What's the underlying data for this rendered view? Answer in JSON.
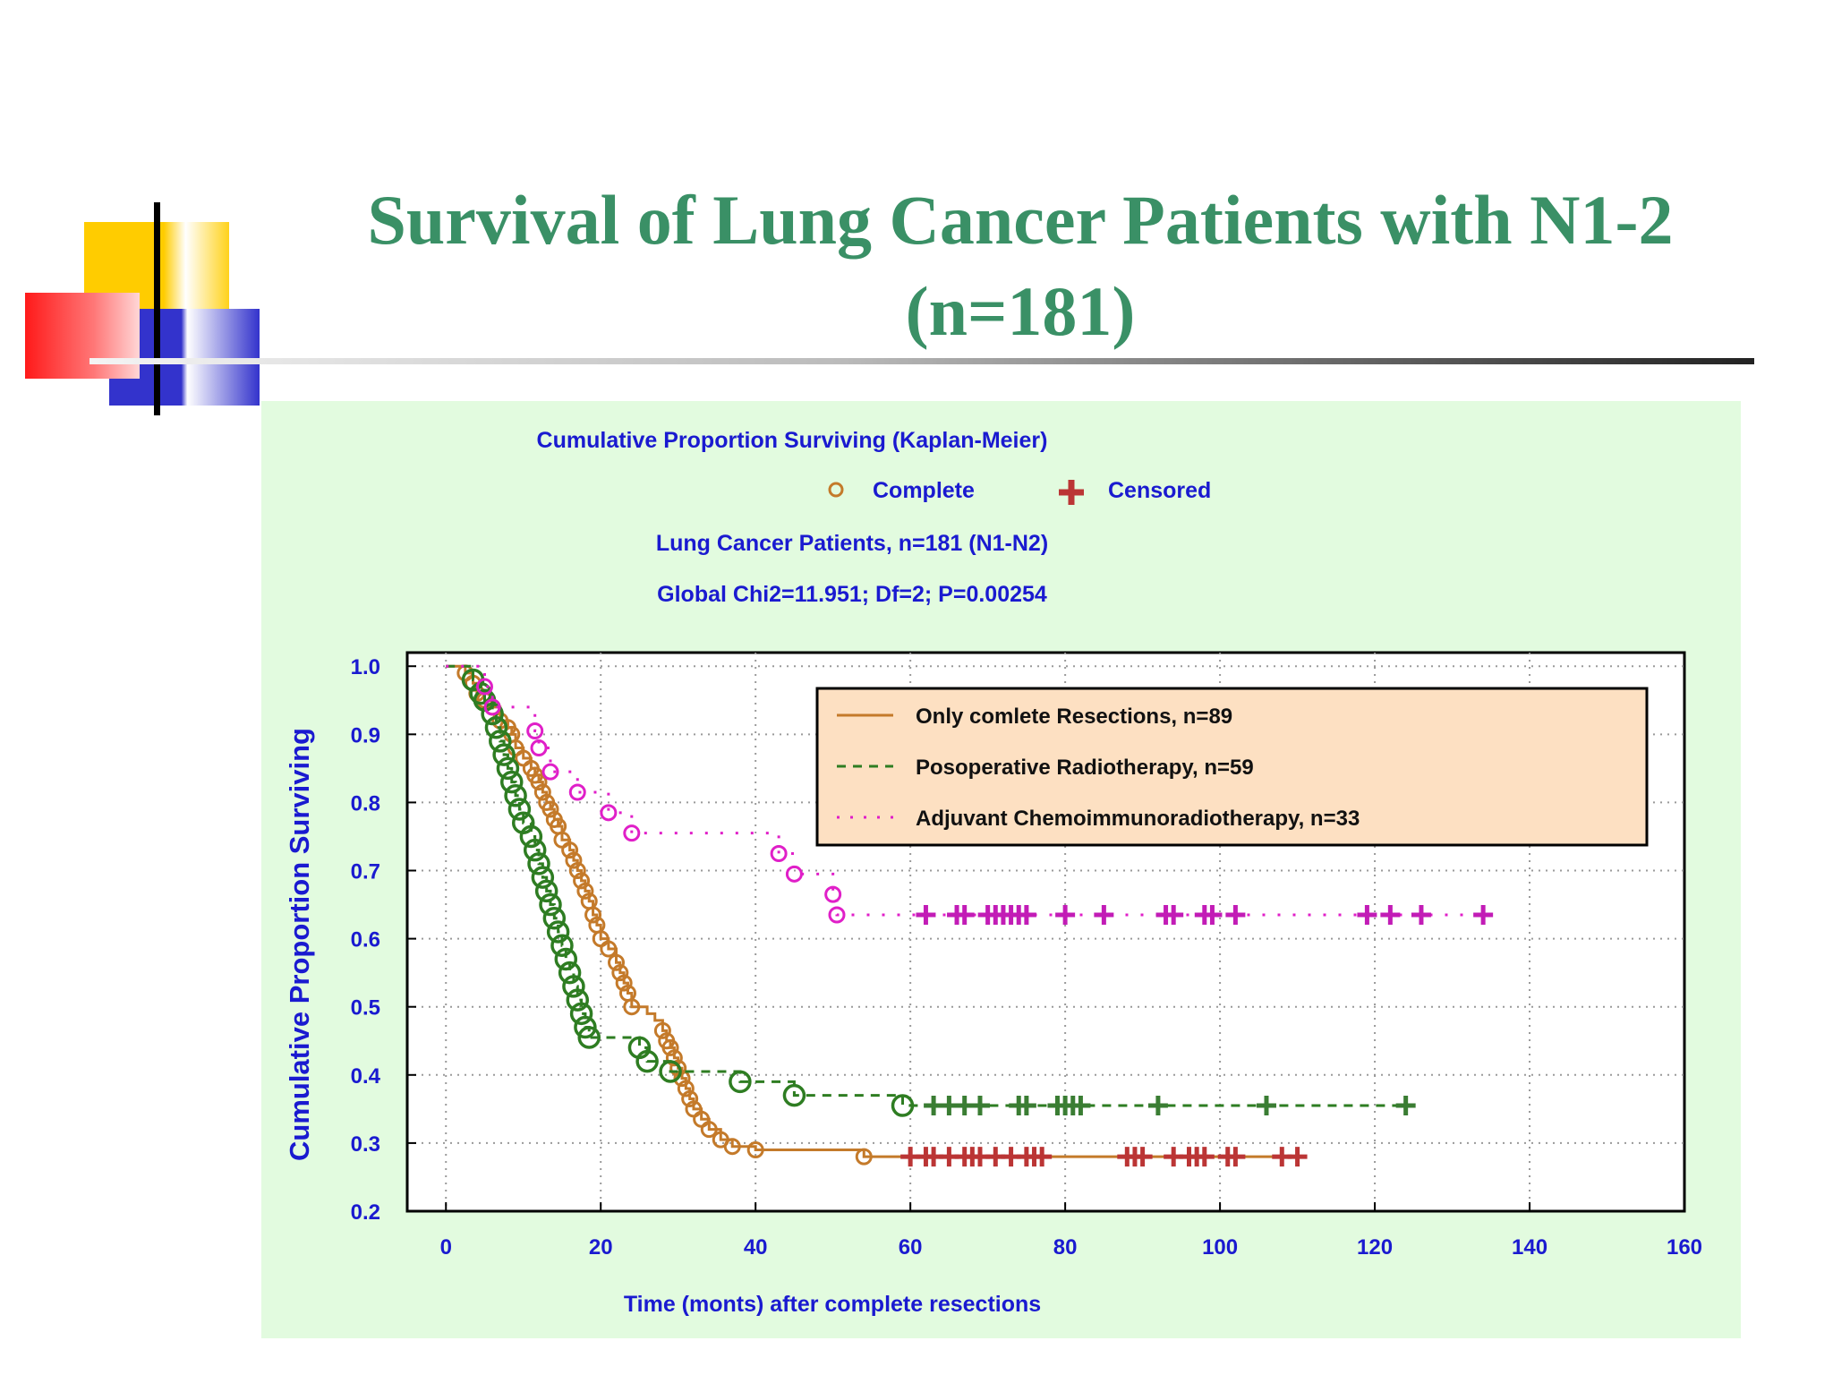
{
  "slide": {
    "title_line1": "Survival of Lung Cancer Patients with N1-2",
    "title_line2": "(n=181)"
  },
  "colors": {
    "title": "#3a9066",
    "panel_background": "#e2fbdf",
    "chart_text": "#1a1ad0",
    "legend_background": "#fde0c2",
    "series_complete": "#c47a2a",
    "series_radiotherapy": "#2e7d22",
    "series_chemo": "#e01fc8",
    "censor_brown": "#bb3535",
    "censor_green": "#3a7d33",
    "censor_magenta": "#c21cb6"
  },
  "chart_data": {
    "type": "line",
    "title": "Cumulative Proportion Surviving (Kaplan-Meier)",
    "key": {
      "complete_label": "Complete",
      "censored_label": "Censored"
    },
    "subtitle": "Lung Cancer Patients, n=181 (N1-N2)",
    "statistic": "Global Chi2=11.951; Df=2; P=0.00254",
    "xlabel": "Time (monts) after complete resections",
    "ylabel": "Cumulative Proportion Surviving",
    "xlim": [
      -5,
      160
    ],
    "ylim": [
      0.2,
      1.02
    ],
    "x_ticks": [
      "0",
      "20",
      "40",
      "60",
      "80",
      "100",
      "120",
      "140",
      "160"
    ],
    "y_ticks": [
      "0.2",
      "0.3",
      "0.4",
      "0.5",
      "0.6",
      "0.7",
      "0.8",
      "0.9",
      "1.0"
    ],
    "grid": true,
    "legend_position": "top-right",
    "series": [
      {
        "name": "Only comlete Resections, n=89",
        "style": "solid",
        "color": "#c47a2a",
        "censor_color": "#bb3535",
        "steps": [
          [
            0,
            1.0
          ],
          [
            2.5,
            0.99
          ],
          [
            3.5,
            0.975
          ],
          [
            4,
            0.96
          ],
          [
            5,
            0.95
          ],
          [
            6,
            0.94
          ],
          [
            7,
            0.92
          ],
          [
            8,
            0.91
          ],
          [
            8.5,
            0.9
          ],
          [
            9,
            0.88
          ],
          [
            10,
            0.865
          ],
          [
            11,
            0.85
          ],
          [
            11.5,
            0.84
          ],
          [
            12,
            0.83
          ],
          [
            12.5,
            0.815
          ],
          [
            13,
            0.8
          ],
          [
            13.5,
            0.79
          ],
          [
            14,
            0.775
          ],
          [
            14.5,
            0.765
          ],
          [
            15,
            0.745
          ],
          [
            16,
            0.73
          ],
          [
            16.5,
            0.715
          ],
          [
            17,
            0.7
          ],
          [
            17.5,
            0.685
          ],
          [
            18,
            0.67
          ],
          [
            18.5,
            0.655
          ],
          [
            19,
            0.635
          ],
          [
            19.5,
            0.62
          ],
          [
            20,
            0.6
          ],
          [
            21,
            0.585
          ],
          [
            22,
            0.565
          ],
          [
            22.5,
            0.55
          ],
          [
            23,
            0.535
          ],
          [
            23.5,
            0.52
          ],
          [
            24,
            0.5
          ],
          [
            26,
            0.49
          ],
          [
            27,
            0.48
          ],
          [
            28,
            0.465
          ],
          [
            28.5,
            0.45
          ],
          [
            29,
            0.44
          ],
          [
            29.5,
            0.425
          ],
          [
            30,
            0.41
          ],
          [
            30.5,
            0.395
          ],
          [
            31,
            0.38
          ],
          [
            31.5,
            0.365
          ],
          [
            32,
            0.35
          ],
          [
            33,
            0.335
          ],
          [
            34,
            0.32
          ],
          [
            35.5,
            0.305
          ],
          [
            37,
            0.295
          ],
          [
            40,
            0.29
          ],
          [
            54,
            0.28
          ],
          [
            110,
            0.28
          ]
        ],
        "events": [
          [
            2.5,
            0.99
          ],
          [
            3.5,
            0.975
          ],
          [
            4,
            0.96
          ],
          [
            5,
            0.95
          ],
          [
            6,
            0.94
          ],
          [
            7,
            0.92
          ],
          [
            8,
            0.91
          ],
          [
            8.5,
            0.9
          ],
          [
            9,
            0.88
          ],
          [
            10,
            0.865
          ],
          [
            11,
            0.85
          ],
          [
            11.5,
            0.84
          ],
          [
            12,
            0.83
          ],
          [
            12.5,
            0.815
          ],
          [
            13,
            0.8
          ],
          [
            13.5,
            0.79
          ],
          [
            14,
            0.775
          ],
          [
            14.5,
            0.765
          ],
          [
            15,
            0.745
          ],
          [
            16,
            0.73
          ],
          [
            16.5,
            0.715
          ],
          [
            17,
            0.7
          ],
          [
            17.5,
            0.685
          ],
          [
            18,
            0.67
          ],
          [
            18.5,
            0.655
          ],
          [
            19,
            0.635
          ],
          [
            19.5,
            0.62
          ],
          [
            20,
            0.6
          ],
          [
            21,
            0.585
          ],
          [
            22,
            0.565
          ],
          [
            22.5,
            0.55
          ],
          [
            23,
            0.535
          ],
          [
            23.5,
            0.52
          ],
          [
            24,
            0.5
          ],
          [
            28,
            0.465
          ],
          [
            28.5,
            0.45
          ],
          [
            29,
            0.44
          ],
          [
            29.5,
            0.425
          ],
          [
            30,
            0.41
          ],
          [
            30.5,
            0.395
          ],
          [
            31,
            0.38
          ],
          [
            31.5,
            0.365
          ],
          [
            32,
            0.35
          ],
          [
            33,
            0.335
          ],
          [
            34,
            0.32
          ],
          [
            35.5,
            0.305
          ],
          [
            37,
            0.295
          ],
          [
            40,
            0.29
          ],
          [
            54,
            0.28
          ]
        ],
        "censored": [
          [
            60,
            0.28
          ],
          [
            62,
            0.28
          ],
          [
            63,
            0.28
          ],
          [
            65,
            0.28
          ],
          [
            67,
            0.28
          ],
          [
            68,
            0.28
          ],
          [
            69,
            0.28
          ],
          [
            71,
            0.28
          ],
          [
            73,
            0.28
          ],
          [
            75,
            0.28
          ],
          [
            76,
            0.28
          ],
          [
            77,
            0.28
          ],
          [
            88,
            0.28
          ],
          [
            89,
            0.28
          ],
          [
            90,
            0.28
          ],
          [
            94,
            0.28
          ],
          [
            96,
            0.28
          ],
          [
            97,
            0.28
          ],
          [
            98,
            0.28
          ],
          [
            101,
            0.28
          ],
          [
            102,
            0.28
          ],
          [
            108,
            0.28
          ],
          [
            110,
            0.28
          ]
        ]
      },
      {
        "name": "Posoperative Radiotherapy, n=59",
        "style": "dashed",
        "color": "#2e7d22",
        "censor_color": "#3a7d33",
        "steps": [
          [
            0,
            1.0
          ],
          [
            3.5,
            0.98
          ],
          [
            4.5,
            0.96
          ],
          [
            5,
            0.95
          ],
          [
            6,
            0.93
          ],
          [
            6.5,
            0.91
          ],
          [
            7,
            0.89
          ],
          [
            7.5,
            0.87
          ],
          [
            8,
            0.85
          ],
          [
            8.5,
            0.83
          ],
          [
            9,
            0.81
          ],
          [
            9.5,
            0.79
          ],
          [
            10,
            0.77
          ],
          [
            11,
            0.75
          ],
          [
            11.5,
            0.73
          ],
          [
            12,
            0.71
          ],
          [
            12.5,
            0.69
          ],
          [
            13,
            0.67
          ],
          [
            13.5,
            0.65
          ],
          [
            14,
            0.63
          ],
          [
            14.5,
            0.61
          ],
          [
            15,
            0.59
          ],
          [
            15.5,
            0.57
          ],
          [
            16,
            0.55
          ],
          [
            16.5,
            0.53
          ],
          [
            17,
            0.51
          ],
          [
            17.5,
            0.49
          ],
          [
            18,
            0.47
          ],
          [
            18.5,
            0.455
          ],
          [
            25,
            0.44
          ],
          [
            26,
            0.42
          ],
          [
            29,
            0.405
          ],
          [
            38,
            0.39
          ],
          [
            45,
            0.37
          ],
          [
            59,
            0.355
          ],
          [
            124,
            0.355
          ]
        ],
        "events": [
          [
            3.5,
            0.98
          ],
          [
            4.5,
            0.96
          ],
          [
            5,
            0.95
          ],
          [
            6,
            0.93
          ],
          [
            6.5,
            0.91
          ],
          [
            7,
            0.89
          ],
          [
            7.5,
            0.87
          ],
          [
            8,
            0.85
          ],
          [
            8.5,
            0.83
          ],
          [
            9,
            0.81
          ],
          [
            9.5,
            0.79
          ],
          [
            10,
            0.77
          ],
          [
            11,
            0.75
          ],
          [
            11.5,
            0.73
          ],
          [
            12,
            0.71
          ],
          [
            12.5,
            0.69
          ],
          [
            13,
            0.67
          ],
          [
            13.5,
            0.65
          ],
          [
            14,
            0.63
          ],
          [
            14.5,
            0.61
          ],
          [
            15,
            0.59
          ],
          [
            15.5,
            0.57
          ],
          [
            16,
            0.55
          ],
          [
            16.5,
            0.53
          ],
          [
            17,
            0.51
          ],
          [
            17.5,
            0.49
          ],
          [
            18,
            0.47
          ],
          [
            18.5,
            0.455
          ],
          [
            25,
            0.44
          ],
          [
            26,
            0.42
          ],
          [
            29,
            0.405
          ],
          [
            38,
            0.39
          ],
          [
            45,
            0.37
          ],
          [
            59,
            0.355
          ]
        ],
        "censored": [
          [
            63,
            0.355
          ],
          [
            65,
            0.355
          ],
          [
            67,
            0.355
          ],
          [
            69,
            0.355
          ],
          [
            74,
            0.355
          ],
          [
            75,
            0.355
          ],
          [
            79,
            0.355
          ],
          [
            80,
            0.355
          ],
          [
            81,
            0.355
          ],
          [
            82,
            0.355
          ],
          [
            92,
            0.355
          ],
          [
            106,
            0.355
          ],
          [
            124,
            0.355
          ]
        ]
      },
      {
        "name": "Adjuvant Chemoimmunoradiotherapy, n=33",
        "style": "dotted",
        "color": "#e01fc8",
        "censor_color": "#c21cb6",
        "steps": [
          [
            0,
            1.0
          ],
          [
            5,
            0.97
          ],
          [
            6,
            0.94
          ],
          [
            11.5,
            0.905
          ],
          [
            12,
            0.88
          ],
          [
            13.5,
            0.845
          ],
          [
            17,
            0.815
          ],
          [
            21,
            0.785
          ],
          [
            24,
            0.755
          ],
          [
            43,
            0.725
          ],
          [
            45,
            0.695
          ],
          [
            50,
            0.665
          ],
          [
            50.5,
            0.635
          ],
          [
            135,
            0.635
          ]
        ],
        "events": [
          [
            5,
            0.97
          ],
          [
            6,
            0.94
          ],
          [
            11.5,
            0.905
          ],
          [
            12,
            0.88
          ],
          [
            13.5,
            0.845
          ],
          [
            17,
            0.815
          ],
          [
            21,
            0.785
          ],
          [
            24,
            0.755
          ],
          [
            43,
            0.725
          ],
          [
            45,
            0.695
          ],
          [
            50,
            0.665
          ],
          [
            50.5,
            0.635
          ]
        ],
        "censored": [
          [
            62,
            0.635
          ],
          [
            66,
            0.635
          ],
          [
            67,
            0.635
          ],
          [
            70,
            0.635
          ],
          [
            71,
            0.635
          ],
          [
            72,
            0.635
          ],
          [
            73,
            0.635
          ],
          [
            74,
            0.635
          ],
          [
            75,
            0.635
          ],
          [
            80,
            0.635
          ],
          [
            85,
            0.635
          ],
          [
            93,
            0.635
          ],
          [
            94,
            0.635
          ],
          [
            98,
            0.635
          ],
          [
            99,
            0.635
          ],
          [
            102,
            0.635
          ],
          [
            119,
            0.635
          ],
          [
            122,
            0.635
          ],
          [
            126,
            0.635
          ],
          [
            134,
            0.635
          ]
        ]
      }
    ]
  }
}
